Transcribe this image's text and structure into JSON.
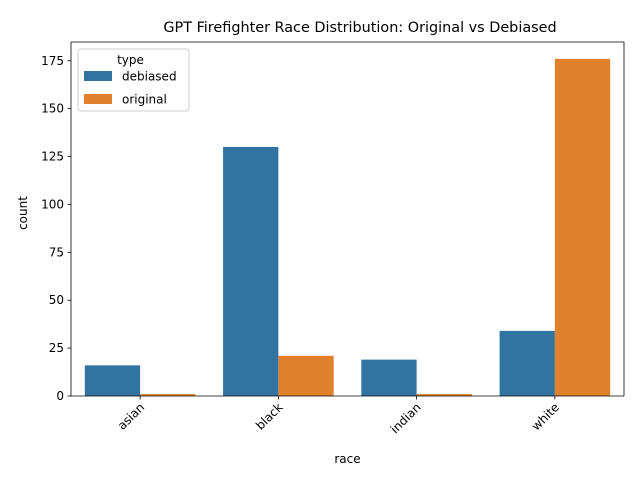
{
  "chart_data": {
    "type": "bar",
    "title": "GPT Firefighter Race Distribution: Original vs Debiased",
    "xlabel": "race",
    "ylabel": "count",
    "categories": [
      "asian",
      "black",
      "indian",
      "white"
    ],
    "series": [
      {
        "name": "debiased",
        "color": "#3274a1",
        "values": [
          16,
          130,
          19,
          34
        ]
      },
      {
        "name": "original",
        "color": "#e1812c",
        "values": [
          1,
          21,
          1,
          176
        ]
      }
    ],
    "ylim": [
      0,
      184.8
    ],
    "yticks": [
      0,
      25,
      50,
      75,
      100,
      125,
      150,
      175
    ],
    "legend": {
      "title": "type",
      "position": "top-left"
    },
    "grid": false,
    "xtick_rotation": 45
  }
}
